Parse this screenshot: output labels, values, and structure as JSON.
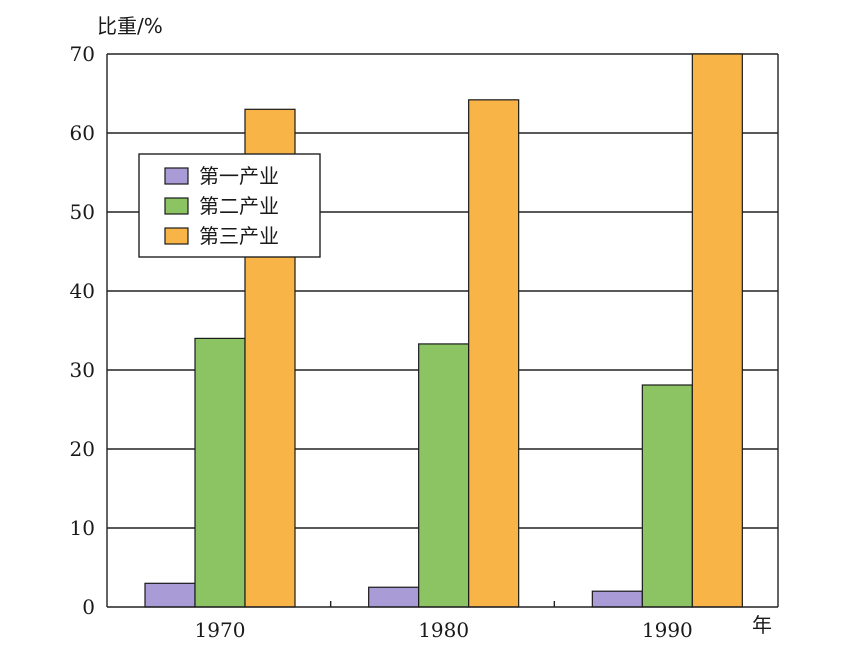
{
  "chart_data": {
    "type": "bar",
    "title": "",
    "ylabel": "比重/%",
    "xlabel": "年",
    "categories": [
      "1970",
      "1980",
      "1990"
    ],
    "ylim": [
      0,
      70
    ],
    "yticks": [
      0,
      10,
      20,
      30,
      40,
      50,
      60,
      70
    ],
    "grid": true,
    "legend_position": "upper-left",
    "series": [
      {
        "name": "第一产业",
        "color": "#a99bd6",
        "values": [
          3.0,
          2.5,
          2.0
        ]
      },
      {
        "name": "第二产业",
        "color": "#8cc464",
        "values": [
          34.0,
          33.3,
          28.1
        ]
      },
      {
        "name": "第三产业",
        "color": "#f9b448",
        "values": [
          63.0,
          64.2,
          70.0
        ]
      }
    ]
  }
}
